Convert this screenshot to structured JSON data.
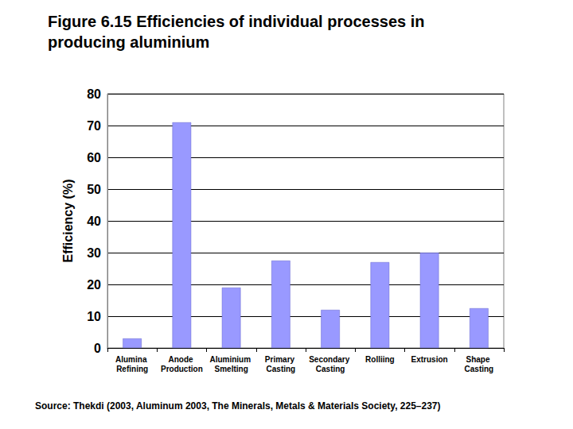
{
  "chart_data": {
    "type": "bar",
    "title": "Figure 6.15 Efficiencies of individual processes in producing aluminium",
    "y_label": "Efficiency (%)",
    "categories": [
      "Alumina Refining",
      "Anode Production",
      "Aluminium Smelting",
      "Primary Casting",
      "Secondary Casting",
      "Rolliing",
      "Extrusion",
      "Shape Casting"
    ],
    "values": [
      3,
      71,
      19,
      27.5,
      12,
      27,
      30,
      12.5
    ],
    "color": "#9999ff",
    "ylim": [
      0,
      80
    ],
    "yticks": [
      0,
      10,
      20,
      30,
      40,
      50,
      60,
      70,
      80
    ],
    "grid": true,
    "source": "Source: Thekdi (2003, Aluminum 2003, The Minerals, Metals & Materials Society, 225–237)"
  }
}
